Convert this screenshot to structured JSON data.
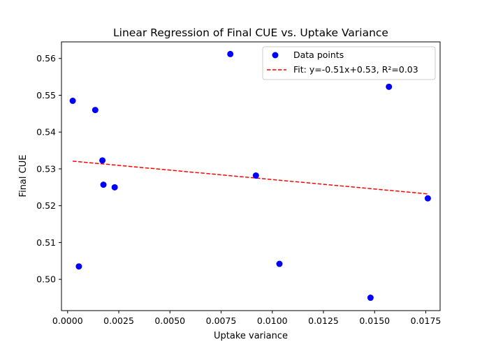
{
  "chart_data": {
    "type": "scatter",
    "title": "Linear Regression of Final CUE vs. Uptake Variance",
    "xlabel": "Uptake variance",
    "ylabel": "Final CUE",
    "xlim": [
      -0.0003,
      0.0182
    ],
    "ylim": [
      0.4915,
      0.5645
    ],
    "xticks": [
      0.0,
      0.0025,
      0.005,
      0.0075,
      0.01,
      0.0125,
      0.015,
      0.0175
    ],
    "xtick_labels": [
      "0.0000",
      "0.0025",
      "0.0050",
      "0.0075",
      "0.0100",
      "0.0125",
      "0.0150",
      "0.0175"
    ],
    "yticks": [
      0.5,
      0.51,
      0.52,
      0.53,
      0.54,
      0.55,
      0.56
    ],
    "ytick_labels": [
      "0.50",
      "0.51",
      "0.52",
      "0.53",
      "0.54",
      "0.55",
      "0.56"
    ],
    "grid": false,
    "legend_position": "top-right",
    "series": [
      {
        "name": "Data points",
        "kind": "scatter",
        "color": "#0000ff",
        "points": [
          {
            "x": 0.00025,
            "y": 0.5485
          },
          {
            "x": 0.00055,
            "y": 0.5035
          },
          {
            "x": 0.00135,
            "y": 0.546
          },
          {
            "x": 0.0017,
            "y": 0.5323
          },
          {
            "x": 0.00175,
            "y": 0.5257
          },
          {
            "x": 0.0023,
            "y": 0.525
          },
          {
            "x": 0.00795,
            "y": 0.5612
          },
          {
            "x": 0.0092,
            "y": 0.5282
          },
          {
            "x": 0.01035,
            "y": 0.5042
          },
          {
            "x": 0.0148,
            "y": 0.495
          },
          {
            "x": 0.0157,
            "y": 0.5523
          },
          {
            "x": 0.0176,
            "y": 0.522
          }
        ]
      },
      {
        "name": "Fit: y=-0.51x+0.53, R²=0.03",
        "kind": "line",
        "style": "dashed",
        "color": "#ff0000",
        "points": [
          {
            "x": 0.00025,
            "y": 0.5321
          },
          {
            "x": 0.0176,
            "y": 0.5232
          }
        ]
      }
    ]
  }
}
